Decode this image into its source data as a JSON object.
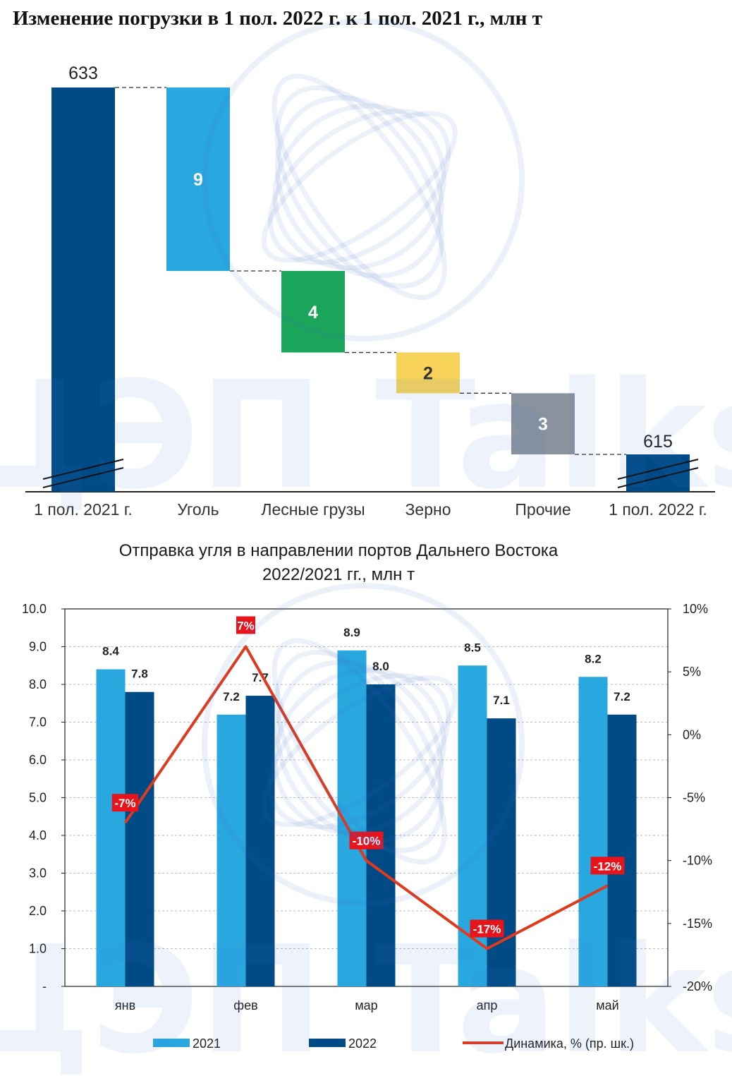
{
  "watermark": "ЦЭП Talks",
  "chart_data": [
    {
      "type": "waterfall",
      "title": "Изменение погрузки в 1 пол. 2022 г. к 1 пол. 2021 г., млн т",
      "categories": [
        "1 пол. 2021 г.",
        "Уголь",
        "Лесные грузы",
        "Зерно",
        "Прочие",
        "1 пол. 2022 г."
      ],
      "start": {
        "label": "633",
        "value": 633
      },
      "end": {
        "label": "615",
        "value": 615
      },
      "steps": [
        {
          "label": "9",
          "value": -9,
          "color": "#29a8e0"
        },
        {
          "label": "4",
          "value": -4,
          "color": "#1aa55b"
        },
        {
          "label": "2",
          "value": -2,
          "color": "#f8d359"
        },
        {
          "label": "3",
          "value": -3,
          "color": "#8a939d"
        }
      ],
      "total_color": "#004a86",
      "axis_break": true
    },
    {
      "type": "bar",
      "title_lines": [
        "Отправка угля в направлении портов Дальнего Востока",
        "2022/2021 гг., млн т"
      ],
      "categories": [
        "янв",
        "фев",
        "мар",
        "апр",
        "май"
      ],
      "series": [
        {
          "name": "2021",
          "color": "#29a8e0",
          "values": [
            8.4,
            7.2,
            8.9,
            8.5,
            8.2
          ],
          "labels": [
            "8.4",
            "7.2",
            "8.9",
            "8.5",
            "8.2"
          ]
        },
        {
          "name": "2022",
          "color": "#004a86",
          "values": [
            7.8,
            7.7,
            8.0,
            7.1,
            7.2
          ],
          "labels": [
            "7.8",
            "7.7",
            "8.0",
            "7.1",
            "7.2"
          ]
        }
      ],
      "line": {
        "name": "Динамика, % (пр. шк.)",
        "color": "#e03a1e",
        "values": [
          -7,
          7,
          -10,
          -17,
          -12
        ],
        "labels": [
          "-7%",
          "7%",
          "-10%",
          "-17%",
          "-12%"
        ]
      },
      "ylim": [
        0,
        10
      ],
      "y_ticks": [
        "-",
        "1.0",
        "2.0",
        "3.0",
        "4.0",
        "5.0",
        "6.0",
        "7.0",
        "8.0",
        "9.0",
        "10.0"
      ],
      "y2lim": [
        -20,
        10
      ],
      "y2_ticks": [
        "-20%",
        "-15%",
        "-10%",
        "-5%",
        "0%",
        "5%",
        "10%"
      ],
      "grid": true,
      "legend": "bottom"
    }
  ]
}
